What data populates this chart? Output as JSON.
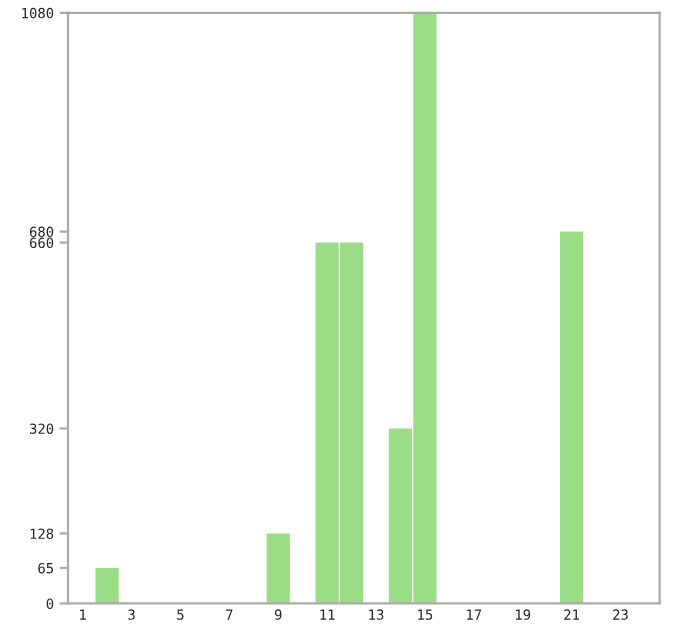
{
  "chart_data": {
    "type": "bar",
    "categories": [
      "1",
      null,
      "3",
      null,
      "5",
      null,
      "7",
      null,
      "9",
      null,
      "11",
      null,
      "13",
      null,
      "15",
      null,
      "17",
      null,
      "19",
      null,
      "21",
      null,
      "23",
      null
    ],
    "values": [
      0,
      65,
      0,
      0,
      0,
      0,
      0,
      0,
      128,
      0,
      660,
      660,
      0,
      320,
      1080,
      0,
      0,
      0,
      0,
      0,
      680,
      0,
      0,
      0
    ],
    "color": "#9bdc86",
    "ylim": [
      0,
      1080
    ],
    "yticks": [
      0,
      65,
      128,
      320,
      660,
      680,
      1080
    ],
    "grid": false,
    "legend": false
  }
}
